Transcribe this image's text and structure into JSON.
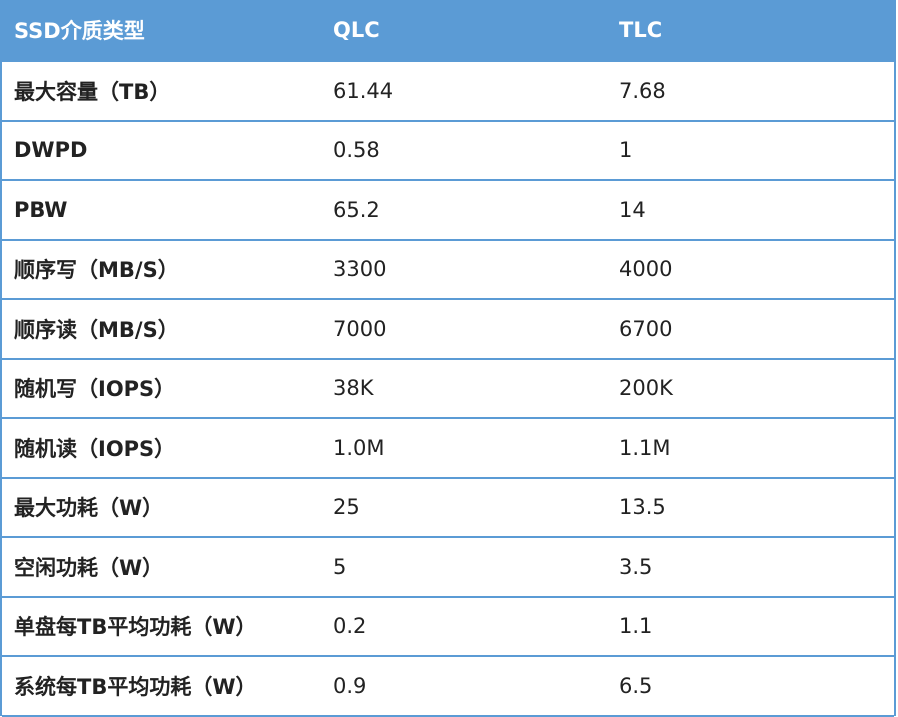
{
  "table": {
    "header": [
      "SSD介质类型",
      "QLC",
      "TLC"
    ],
    "rows": [
      [
        "最大容量（TB）",
        "61.44",
        "7.68"
      ],
      [
        "DWPD",
        "0.58",
        "1"
      ],
      [
        "PBW",
        "65.2",
        "14"
      ],
      [
        "顺序写（MB/S）",
        "3300",
        "4000"
      ],
      [
        "顺序读（MB/S）",
        "7000",
        "6700"
      ],
      [
        "随机写（IOPS）",
        "38K",
        "200K"
      ],
      [
        "随机读（IOPS）",
        "1.0M",
        "1.1M"
      ],
      [
        "最大功耗（W）",
        "25",
        "13.5"
      ],
      [
        "空闲功耗（W）",
        "5",
        "3.5"
      ],
      [
        "单盘每TB平均功耗（W）",
        "0.2",
        "1.1"
      ],
      [
        "系统每TB平均功耗（W）",
        "0.9",
        "6.5"
      ]
    ]
  }
}
